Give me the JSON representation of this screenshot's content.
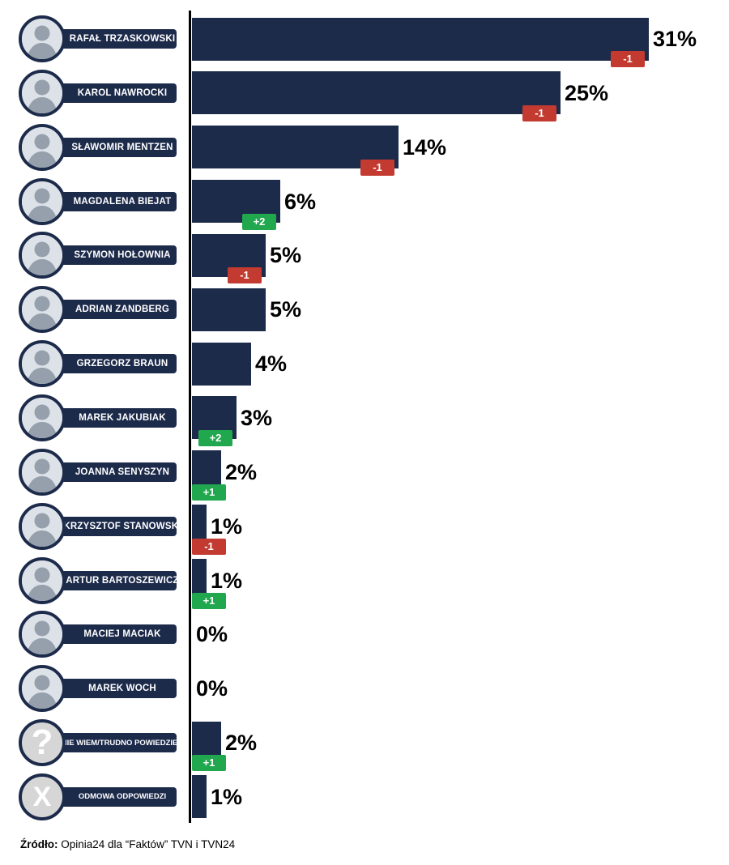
{
  "chart_data": {
    "type": "bar",
    "orientation": "horizontal",
    "title": "",
    "xlabel": "",
    "ylabel": "",
    "value_unit": "%",
    "xlim": [
      0,
      35
    ],
    "grid": false,
    "legend": "none",
    "categories": [
      "RAFAŁ TRZASKOWSKI",
      "KAROL NAWROCKI",
      "SŁAWOMIR MENTZEN",
      "MAGDALENA BIEJAT",
      "SZYMON HOŁOWNIA",
      "ADRIAN ZANDBERG",
      "GRZEGORZ BRAUN",
      "MAREK JAKUBIAK",
      "JOANNA SENYSZYN",
      "KRZYSZTOF STANOWSKI",
      "ARTUR BARTOSZEWICZ",
      "MACIEJ MACIAK",
      "MAREK WOCH",
      "NIE WIEM/TRUDNO POWIEDZIEĆ",
      "ODMOWA ODPOWIEDZI"
    ],
    "values": [
      31,
      25,
      14,
      6,
      5,
      5,
      4,
      3,
      2,
      1,
      1,
      0,
      0,
      2,
      1
    ],
    "value_labels": [
      "31%",
      "25%",
      "14%",
      "6%",
      "5%",
      "5%",
      "4%",
      "3%",
      "2%",
      "1%",
      "1%",
      "0%",
      "0%",
      "2%",
      "1%"
    ],
    "changes": [
      "-1",
      "-1",
      "-1",
      "+2",
      "-1",
      null,
      null,
      "+2",
      "+1",
      "-1",
      "+1",
      null,
      null,
      "+1",
      null
    ],
    "avatars": [
      "photo",
      "photo",
      "photo",
      "photo",
      "photo",
      "photo",
      "photo",
      "photo",
      "photo",
      "photo",
      "photo",
      "photo",
      "photo",
      "question-mark",
      "x-mark"
    ],
    "colors": {
      "bar": "#1d2b4b",
      "pill": "#1d2b4b",
      "positive": "#21a74d",
      "negative": "#c23a30",
      "axis": "#000000",
      "value_text": "#000000",
      "glyph_circle": "#d6d6d6"
    }
  },
  "footer": {
    "bold": "Źródło:",
    "text": " Opinia24 dla “Faktów” TVN i TVN24"
  }
}
